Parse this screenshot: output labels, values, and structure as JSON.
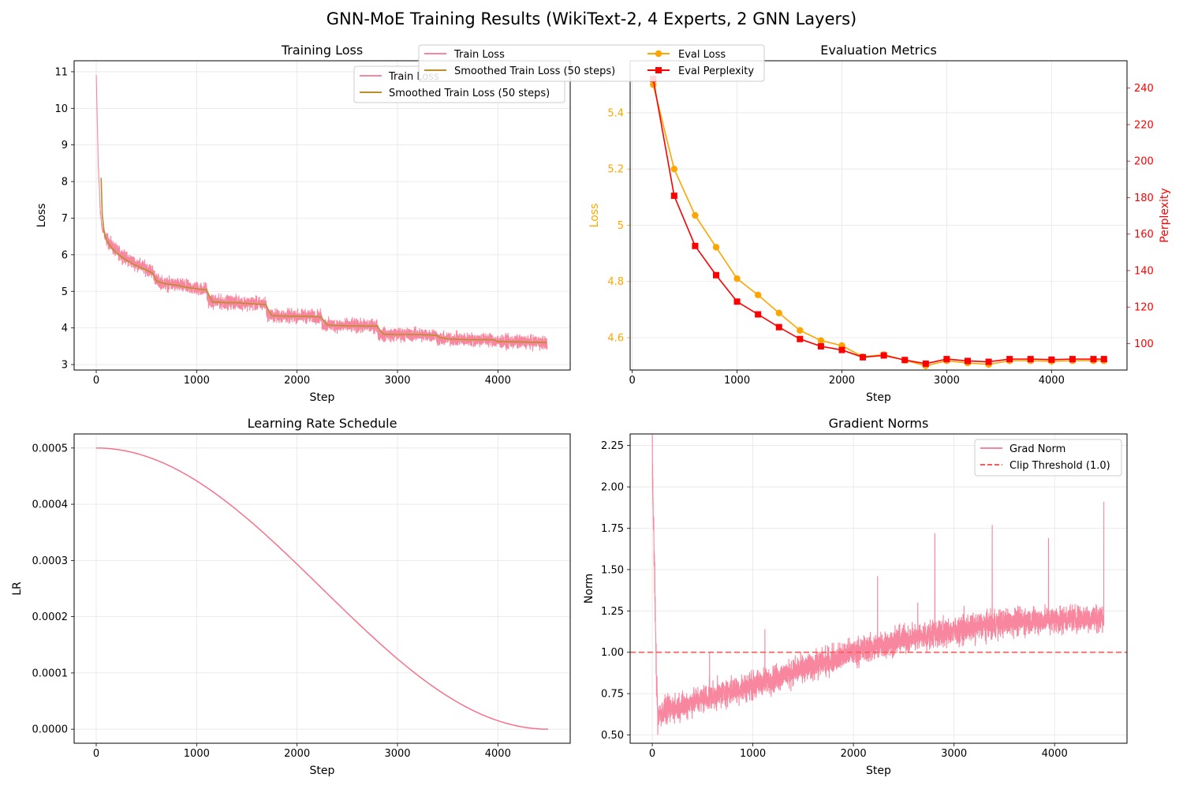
{
  "figure": {
    "title": "GNN-MoE Training Results (WikiText-2, 4 Experts, 2 GNN Layers)"
  },
  "colors": {
    "train_loss": "#f7869e",
    "smoothed": "#b88f2a",
    "eval_loss": "#ffa500",
    "eval_ppl": "#ff0000",
    "lr": "#f77189",
    "grad": "#f7869e",
    "clip": "#ff5a5a",
    "grid": "#e6e6e6"
  },
  "chart_data": [
    {
      "id": "training_loss",
      "type": "line",
      "title": "Training Loss",
      "xlabel": "Step",
      "ylabel": "Loss",
      "xlim": [
        -220,
        4720
      ],
      "ylim": [
        2.85,
        11.3
      ],
      "xticks": [
        0,
        1000,
        2000,
        3000,
        4000
      ],
      "yticks": [
        3,
        4,
        5,
        6,
        7,
        8,
        9,
        10,
        11
      ],
      "grid": true,
      "legend": "upper-right",
      "series": [
        {
          "name": "Train Loss",
          "style": "noisy",
          "x": [
            0,
            20,
            40,
            60,
            100,
            150,
            200,
            300,
            400,
            500,
            560,
            600,
            700,
            800,
            900,
            1000,
            1100,
            1110,
            1150,
            1300,
            1400,
            1500,
            1600,
            1690,
            1700,
            1750,
            1900,
            2100,
            2240,
            2250,
            2300,
            2500,
            2700,
            2800,
            2810,
            2850,
            3000,
            3200,
            3390,
            3400,
            3500,
            3700,
            3950,
            4000,
            4200,
            4490
          ],
          "y": [
            10.9,
            8.5,
            7.2,
            6.7,
            6.45,
            6.25,
            6.1,
            5.9,
            5.75,
            5.62,
            5.55,
            5.3,
            5.2,
            5.18,
            5.12,
            5.08,
            5.05,
            4.78,
            4.72,
            4.7,
            4.7,
            4.68,
            4.66,
            4.65,
            4.4,
            4.33,
            4.32,
            4.32,
            4.3,
            4.1,
            4.08,
            4.06,
            4.05,
            4.05,
            3.85,
            3.82,
            3.82,
            3.82,
            3.8,
            3.7,
            3.7,
            3.68,
            3.68,
            3.62,
            3.62,
            3.6
          ],
          "noise": 0.16
        },
        {
          "name": "Smoothed Train Loss (50 steps)",
          "style": "smooth",
          "x": [
            49,
            60,
            80,
            100,
            150,
            200,
            300,
            400,
            500,
            560,
            600,
            700,
            800,
            900,
            1000,
            1100,
            1130,
            1160,
            1300,
            1400,
            1500,
            1600,
            1690,
            1720,
            1750,
            1900,
            2100,
            2240,
            2270,
            2300,
            2500,
            2700,
            2800,
            2830,
            2860,
            3000,
            3200,
            3390,
            3420,
            3500,
            3700,
            3950,
            4000,
            4200,
            4490
          ],
          "y": [
            8.1,
            7.1,
            6.6,
            6.4,
            6.2,
            6.05,
            5.85,
            5.7,
            5.58,
            5.5,
            5.28,
            5.2,
            5.17,
            5.11,
            5.07,
            5.04,
            4.85,
            4.71,
            4.69,
            4.69,
            4.67,
            4.65,
            4.64,
            4.45,
            4.34,
            4.32,
            4.32,
            4.3,
            4.18,
            4.08,
            4.06,
            4.05,
            4.05,
            3.92,
            3.83,
            3.82,
            3.82,
            3.8,
            3.74,
            3.7,
            3.68,
            3.68,
            3.63,
            3.62,
            3.6
          ]
        }
      ]
    },
    {
      "id": "evaluation_metrics",
      "type": "line",
      "title": "Evaluation Metrics",
      "xlabel": "Step",
      "ylabel": "Loss",
      "y2label": "Perplexity",
      "xlim": [
        -20,
        4720
      ],
      "ylim": [
        4.485,
        5.585
      ],
      "y2lim": [
        85.5,
        255
      ],
      "xticks": [
        0,
        1000,
        2000,
        3000,
        4000
      ],
      "yticks": [
        4.6,
        4.8,
        5.0,
        5.2,
        5.4
      ],
      "y2ticks": [
        100,
        120,
        140,
        160,
        180,
        200,
        220,
        240
      ],
      "grid": true,
      "legend": "upper-center",
      "series": [
        {
          "name": "Eval Loss",
          "axis": "left",
          "marker": "circle",
          "x": [
            200,
            400,
            600,
            800,
            1000,
            1200,
            1400,
            1600,
            1800,
            2000,
            2200,
            2400,
            2600,
            2800,
            3000,
            3200,
            3400,
            3600,
            3800,
            4000,
            4200,
            4400,
            4500
          ],
          "y": [
            5.5,
            5.2,
            5.035,
            4.922,
            4.81,
            4.752,
            4.688,
            4.626,
            4.59,
            4.572,
            4.532,
            4.54,
            4.52,
            4.5,
            4.518,
            4.51,
            4.505,
            4.518,
            4.518,
            4.516,
            4.518,
            4.518,
            4.518
          ]
        },
        {
          "name": "Eval Perplexity",
          "axis": "right",
          "marker": "square",
          "x": [
            200,
            400,
            600,
            800,
            1000,
            1200,
            1400,
            1600,
            1800,
            2000,
            2200,
            2400,
            2600,
            2800,
            3000,
            3200,
            3400,
            3600,
            3800,
            4000,
            4200,
            4400,
            4500
          ],
          "y": [
            245,
            181,
            153.5,
            137.5,
            123,
            116,
            109,
            102.5,
            98.5,
            96.5,
            92.5,
            93.5,
            91,
            89,
            91.5,
            90.5,
            90,
            91.5,
            91.5,
            91.2,
            91.5,
            91.5,
            91.5
          ]
        }
      ]
    },
    {
      "id": "learning_rate",
      "type": "line",
      "title": "Learning Rate Schedule",
      "xlabel": "Step",
      "ylabel": "LR",
      "xlim": [
        -220,
        4720
      ],
      "ylim": [
        -2.5e-05,
        0.000525
      ],
      "xticks": [
        0,
        1000,
        2000,
        3000,
        4000
      ],
      "yticks": [
        "0.0000",
        "0.0001",
        "0.0002",
        "0.0003",
        "0.0004",
        "0.0005"
      ],
      "grid": true,
      "series": [
        {
          "name": "LR",
          "style": "cosine",
          "x": [
            0,
            4500
          ],
          "y": [
            0.0005,
            0.0
          ]
        }
      ]
    },
    {
      "id": "gradient_norms",
      "type": "line",
      "title": "Gradient Norms",
      "xlabel": "Step",
      "ylabel": "Norm",
      "xlim": [
        -220,
        4720
      ],
      "ylim": [
        0.45,
        2.32
      ],
      "xticks": [
        0,
        1000,
        2000,
        3000,
        4000
      ],
      "yticks": [
        0.5,
        0.75,
        1.0,
        1.25,
        1.5,
        1.75,
        2.0,
        2.25
      ],
      "ytick_labels": [
        "0.50",
        "0.75",
        "1.00",
        "1.25",
        "1.50",
        "1.75",
        "2.00",
        "2.25"
      ],
      "grid": true,
      "legend": "upper-right",
      "series": [
        {
          "name": "Grad Norm",
          "style": "noisy",
          "x": [
            0,
            5,
            15,
            25,
            35,
            45,
            55,
            80,
            200,
            500,
            1000,
            1500,
            2000,
            2500,
            3000,
            3500,
            4000,
            4490
          ],
          "y": [
            2.23,
            1.95,
            1.7,
            1.4,
            1.05,
            0.78,
            0.63,
            0.63,
            0.66,
            0.72,
            0.8,
            0.9,
            1.0,
            1.08,
            1.13,
            1.18,
            1.2,
            1.21
          ],
          "noise": 0.07,
          "spikes": [
            [
              55,
              0.5
            ],
            [
              570,
              1.0
            ],
            [
              1120,
              1.14
            ],
            [
              2050,
              1.07
            ],
            [
              2240,
              1.46
            ],
            [
              2640,
              1.3
            ],
            [
              2810,
              1.72
            ],
            [
              3100,
              1.28
            ],
            [
              3380,
              1.77
            ],
            [
              3940,
              1.69
            ],
            [
              4490,
              1.91
            ]
          ]
        },
        {
          "name": "Clip Threshold (1.0)",
          "style": "dashed",
          "y": 1.0
        }
      ]
    }
  ]
}
